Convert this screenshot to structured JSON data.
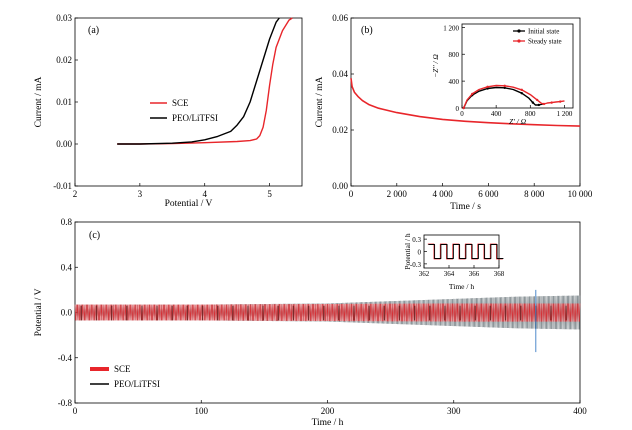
{
  "chart_data": [
    {
      "panel": "(a)",
      "type": "line",
      "xlabel": "Potential / V",
      "ylabel": "Current / mA",
      "xlim": [
        2,
        5.5
      ],
      "ylim": [
        -0.01,
        0.03
      ],
      "xticks": [
        "2",
        "3",
        "4",
        "5"
      ],
      "yticks": [
        "-0.01",
        "0.00",
        "0.01",
        "0.02",
        "0.03"
      ],
      "legend_placement": "center-left",
      "series": [
        {
          "name": "SCE",
          "color": "#e8262b",
          "x": [
            2.65,
            3.0,
            3.5,
            4.0,
            4.5,
            4.7,
            4.8,
            4.85,
            4.9,
            4.95,
            5.0,
            5.05,
            5.1,
            5.2,
            5.3,
            5.35
          ],
          "y": [
            0.0,
            0.0,
            0.0001,
            0.0003,
            0.0006,
            0.0008,
            0.0012,
            0.002,
            0.004,
            0.008,
            0.014,
            0.019,
            0.023,
            0.027,
            0.0295,
            0.0305
          ]
        },
        {
          "name": "PEO/LiTFSI",
          "color": "#000000",
          "x": [
            2.65,
            3.0,
            3.5,
            3.8,
            4.0,
            4.2,
            4.4,
            4.5,
            4.6,
            4.7,
            4.8,
            4.9,
            5.0,
            5.1,
            5.15
          ],
          "y": [
            0.0,
            0.0,
            0.0002,
            0.0005,
            0.001,
            0.0018,
            0.003,
            0.0045,
            0.0065,
            0.01,
            0.015,
            0.02,
            0.025,
            0.029,
            0.0305
          ]
        }
      ]
    },
    {
      "panel": "(b)",
      "type": "line",
      "xlabel": "Time / s",
      "ylabel": "Current / mA",
      "xlim": [
        0,
        10000
      ],
      "ylim": [
        0,
        0.06
      ],
      "xticks": [
        "0",
        "2 000",
        "4 000",
        "6 000",
        "8 000",
        "10 000"
      ],
      "yticks": [
        "0.00",
        "0.02",
        "0.04",
        "0.06"
      ],
      "series": [
        {
          "color": "#e8262b",
          "x": [
            0,
            50,
            150,
            300,
            500,
            800,
            1200,
            2000,
            3000,
            4000,
            5000,
            6000,
            7000,
            8000,
            9000,
            10000
          ],
          "y": [
            0.0385,
            0.0355,
            0.0335,
            0.032,
            0.0305,
            0.029,
            0.0278,
            0.0262,
            0.0248,
            0.0238,
            0.0231,
            0.0226,
            0.0222,
            0.0219,
            0.0216,
            0.0214
          ]
        }
      ],
      "inset": {
        "xlabel": "Z' / Ω",
        "ylabel": "−Z'' / Ω",
        "xlim": [
          0,
          1300
        ],
        "ylim": [
          0,
          1250
        ],
        "xticks": [
          "0",
          "400",
          "800",
          "1 200"
        ],
        "yticks": [
          "0",
          "400",
          "800",
          "1 200"
        ],
        "legend_placement": "top-right",
        "series": [
          {
            "name": "Initial state",
            "color": "#000000",
            "x": [
              20,
              60,
              120,
              200,
              300,
              400,
              500,
              600,
              700,
              780,
              830,
              860,
              900,
              950
            ],
            "y": [
              0,
              110,
              190,
              250,
              290,
              305,
              300,
              275,
              220,
              150,
              80,
              45,
              45,
              60
            ]
          },
          {
            "name": "Steady state",
            "color": "#e8262b",
            "x": [
              20,
              60,
              120,
              200,
              300,
              400,
              500,
              600,
              700,
              800,
              880,
              930,
              960,
              1000,
              1050,
              1100,
              1150,
              1200
            ],
            "y": [
              0,
              120,
              210,
              275,
              315,
              335,
              330,
              310,
              270,
              200,
              120,
              70,
              60,
              75,
              80,
              90,
              95,
              105
            ]
          }
        ]
      }
    },
    {
      "panel": "(c)",
      "type": "line",
      "xlabel": "Time / h",
      "ylabel": "Potential / V",
      "xlim": [
        0,
        400
      ],
      "ylim": [
        -0.8,
        0.8
      ],
      "xticks": [
        "0",
        "100",
        "200",
        "300",
        "400"
      ],
      "yticks": [
        "-0.8",
        "-0.4",
        "0.0",
        "0.4",
        "0.8"
      ],
      "legend_placement": "bottom-left",
      "series": [
        {
          "name": "SCE",
          "color": "#e8262b",
          "x": [
            0,
            100,
            200,
            300,
            400
          ],
          "amplitude": [
            0.07,
            0.07,
            0.075,
            0.08,
            0.08
          ]
        },
        {
          "name": "PEO/LiTFSI",
          "color": "#000000",
          "x": [
            0,
            100,
            200,
            250,
            300,
            350,
            400
          ],
          "amplitude": [
            0.07,
            0.07,
            0.08,
            0.1,
            0.12,
            0.14,
            0.15
          ]
        }
      ],
      "inset": {
        "xlabel": "Time / h",
        "ylabel": "Potential / h",
        "xlim": [
          362,
          368
        ],
        "ylim": [
          -0.4,
          0.4
        ],
        "xticks": [
          "362",
          "364",
          "366",
          "368"
        ],
        "yticks": [
          "0.3",
          "0",
          "-0.3"
        ],
        "series": [
          {
            "name": "SCE",
            "color": "#e8262b",
            "amplitude": 0.18
          },
          {
            "name": "PEO/LiTFSI",
            "color": "#000000",
            "amplitude": 0.17
          }
        ]
      }
    }
  ]
}
